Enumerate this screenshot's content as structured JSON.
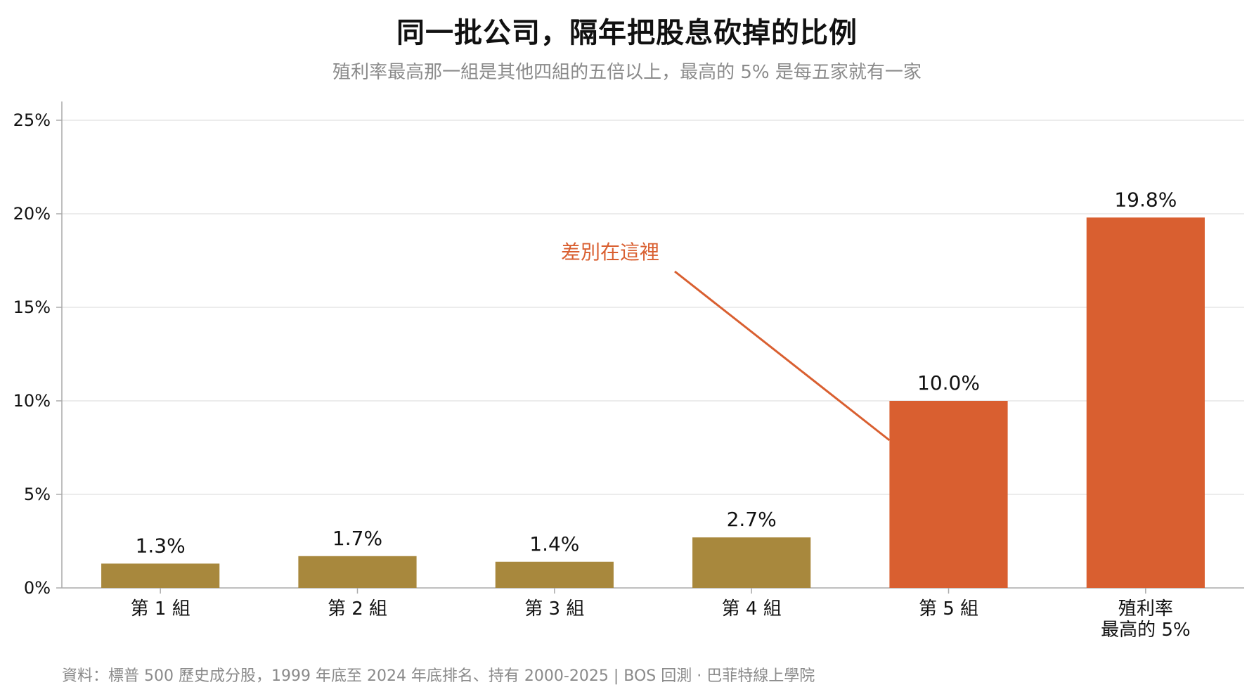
{
  "title": "同一批公司，隔年把股息砍掉的比例",
  "subtitle": "殖利率最高那一組是其他四組的五倍以上，最高的 5% 是每五家就有一家",
  "source": "資料：標普 500 歷史成分股，1999 年底至 2024 年底排名、持有 2000-2025 | BOS 回測 · 巴菲特線上學院",
  "colors": {
    "base": "#A8883D",
    "highlight": "#D95F30",
    "grid": "#e6e6e6",
    "axis": "#aaaaaa",
    "annotation": "#D95F30"
  },
  "chart_data": {
    "type": "bar",
    "categories": [
      [
        "第 1 組"
      ],
      [
        "第 2 組"
      ],
      [
        "第 3 組"
      ],
      [
        "第 4 組"
      ],
      [
        "第 5 組"
      ],
      [
        "殖利率",
        "最高的 5%"
      ]
    ],
    "values": [
      1.3,
      1.7,
      1.4,
      2.7,
      10.0,
      19.8
    ],
    "value_labels": [
      "1.3%",
      "1.7%",
      "1.4%",
      "2.7%",
      "10.0%",
      "19.8%"
    ],
    "highlighted": [
      false,
      false,
      false,
      false,
      true,
      true
    ],
    "yticks": [
      0,
      5,
      10,
      15,
      20,
      25
    ],
    "ytick_labels": [
      "0%",
      "5%",
      "10%",
      "15%",
      "20%",
      "25%"
    ],
    "ylim": [
      0,
      26
    ],
    "grid": true,
    "annotation": {
      "text": "差別在這裡",
      "points_to_category": 4
    }
  }
}
